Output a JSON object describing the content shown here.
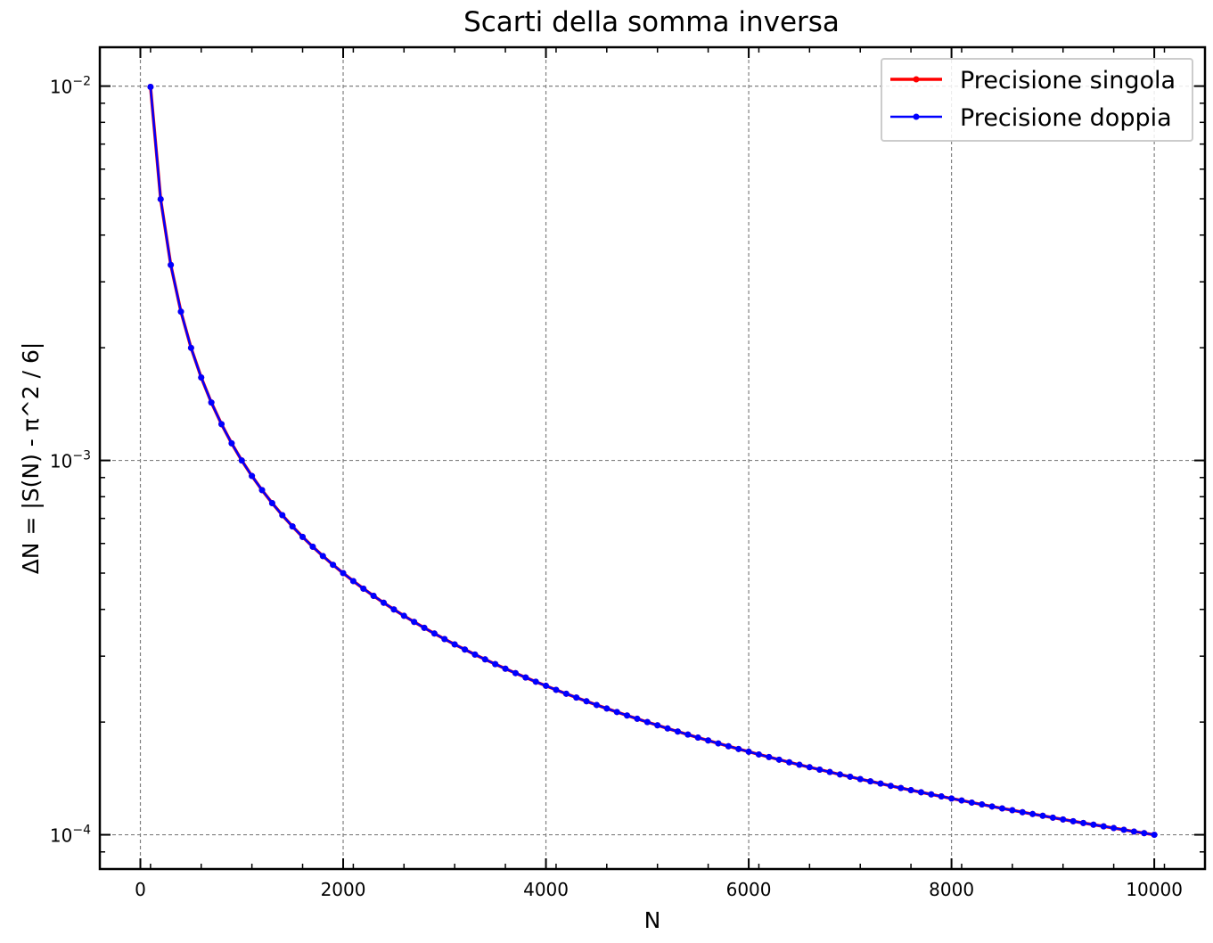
{
  "chart_data": {
    "type": "line",
    "title": "Scarti della somma inversa",
    "xlabel": "N",
    "ylabel": "ΔN = |S(N) -  π^2 / 6|",
    "xlim": [
      -400,
      10500
    ],
    "ylim": [
      8.1e-05,
      0.0127
    ],
    "yscale": "log",
    "grid": true,
    "legend_position": "top-right",
    "x_ticks": [
      0,
      2000,
      4000,
      6000,
      8000,
      10000
    ],
    "x_tick_labels": [
      "0",
      "2000",
      "4000",
      "6000",
      "8000",
      "10000"
    ],
    "y_ticks": [
      {
        "value": 0.01,
        "base": "10",
        "exp": "−2"
      },
      {
        "value": 0.001,
        "base": "10",
        "exp": "−3"
      },
      {
        "value": 0.0001,
        "base": "10",
        "exp": "−4"
      }
    ],
    "x": [
      100,
      200,
      300,
      400,
      500,
      600,
      700,
      800,
      900,
      1000,
      1100,
      1200,
      1300,
      1400,
      1500,
      1600,
      1700,
      1800,
      1900,
      2000,
      2100,
      2200,
      2300,
      2400,
      2500,
      2600,
      2700,
      2800,
      2900,
      3000,
      3100,
      3200,
      3300,
      3400,
      3500,
      3600,
      3700,
      3800,
      3900,
      4000,
      4100,
      4200,
      4300,
      4400,
      4500,
      4600,
      4700,
      4800,
      4900,
      5000,
      5100,
      5200,
      5300,
      5400,
      5500,
      5600,
      5700,
      5800,
      5900,
      6000,
      6100,
      6200,
      6300,
      6400,
      6500,
      6600,
      6700,
      6800,
      6900,
      7000,
      7100,
      7200,
      7300,
      7400,
      7500,
      7600,
      7700,
      7800,
      7900,
      8000,
      8100,
      8200,
      8300,
      8400,
      8500,
      8600,
      8700,
      8800,
      8900,
      9000,
      9100,
      9200,
      9300,
      9400,
      9500,
      9600,
      9700,
      9800,
      9900,
      10000
    ],
    "series": [
      {
        "name": "Precisione singola",
        "color": "#ff0000",
        "marker": "circle",
        "values": [
          0.00995,
          0.004988,
          0.003328,
          0.002497,
          0.001998,
          0.001666,
          0.001428,
          0.00125,
          0.001111,
          0.0009995,
          0.0009087,
          0.000833,
          0.0007689,
          0.000714,
          0.0006664,
          0.0006248,
          0.0005881,
          0.0005554,
          0.0005262,
          0.0004999,
          0.0004761,
          0.0004544,
          0.0004347,
          0.0004166,
          0.0003999,
          0.0003845,
          0.0003703,
          0.0003571,
          0.0003448,
          0.0003333,
          0.0003225,
          0.0003125,
          0.000303,
          0.0002941,
          0.0002857,
          0.0002777,
          0.0002703,
          0.0002631,
          0.0002564,
          0.00025,
          0.0002439,
          0.0002381,
          0.0002326,
          0.0002273,
          0.0002222,
          0.0002174,
          0.0002128,
          0.0002083,
          0.0002041,
          0.0002,
          0.0001961,
          0.0001923,
          0.0001887,
          0.0001852,
          0.0001818,
          0.0001786,
          0.0001754,
          0.0001724,
          0.0001695,
          0.0001667,
          0.0001639,
          0.0001613,
          0.0001587,
          0.0001562,
          0.0001538,
          0.0001515,
          0.0001493,
          0.0001471,
          0.0001449,
          0.0001429,
          0.0001408,
          0.0001389,
          0.000137,
          0.0001351,
          0.0001333,
          0.0001316,
          0.0001299,
          0.0001282,
          0.0001266,
          0.000125,
          0.0001235,
          0.0001219,
          0.0001205,
          0.000119,
          0.0001176,
          0.0001163,
          0.0001149,
          0.0001136,
          0.0001124,
          0.0001111,
          0.0001099,
          0.0001087,
          0.0001075,
          0.0001064,
          0.0001053,
          0.0001042,
          0.0001031,
          0.000102,
          0.000101,
          0.0001
        ]
      },
      {
        "name": "Precisione doppia",
        "color": "#0000ff",
        "marker": "circle",
        "values": [
          0.00995,
          0.004988,
          0.003328,
          0.002497,
          0.001998,
          0.001666,
          0.001428,
          0.00125,
          0.001111,
          0.0009995,
          0.0009087,
          0.000833,
          0.0007689,
          0.000714,
          0.0006664,
          0.0006248,
          0.0005881,
          0.0005554,
          0.0005262,
          0.0004999,
          0.0004761,
          0.0004544,
          0.0004347,
          0.0004166,
          0.0003999,
          0.0003845,
          0.0003703,
          0.0003571,
          0.0003448,
          0.0003333,
          0.0003225,
          0.0003125,
          0.000303,
          0.0002941,
          0.0002857,
          0.0002777,
          0.0002703,
          0.0002631,
          0.0002564,
          0.00025,
          0.0002439,
          0.0002381,
          0.0002326,
          0.0002273,
          0.0002222,
          0.0002174,
          0.0002128,
          0.0002083,
          0.0002041,
          0.0002,
          0.0001961,
          0.0001923,
          0.0001887,
          0.0001852,
          0.0001818,
          0.0001786,
          0.0001754,
          0.0001724,
          0.0001695,
          0.0001667,
          0.0001639,
          0.0001613,
          0.0001587,
          0.0001562,
          0.0001538,
          0.0001515,
          0.0001493,
          0.0001471,
          0.0001449,
          0.0001429,
          0.0001408,
          0.0001389,
          0.000137,
          0.0001351,
          0.0001333,
          0.0001316,
          0.0001299,
          0.0001282,
          0.0001266,
          0.000125,
          0.0001235,
          0.0001219,
          0.0001205,
          0.000119,
          0.0001176,
          0.0001163,
          0.0001149,
          0.0001136,
          0.0001124,
          0.0001111,
          0.0001099,
          0.0001087,
          0.0001075,
          0.0001064,
          0.0001053,
          0.0001042,
          0.0001031,
          0.000102,
          0.000101,
          0.0001
        ]
      }
    ]
  }
}
